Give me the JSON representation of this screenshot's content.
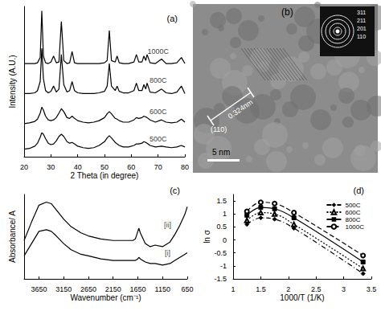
{
  "chart_data": [
    {
      "type": "line",
      "title": "(a)",
      "x_label": "2 Theta (in degree)",
      "y_label": "Intensity (A.U.)",
      "x": [
        20,
        22,
        24,
        25,
        26,
        26.6,
        27.2,
        28,
        29,
        30,
        31,
        32,
        33,
        33.9,
        34.8,
        36,
        37,
        37.9,
        38.8,
        40,
        42,
        44,
        46,
        48,
        50,
        51,
        51.8,
        52.6,
        54,
        54.7,
        55.5,
        57,
        59,
        61,
        61.9,
        62.8,
        64,
        64.7,
        65.4,
        65.9,
        67,
        69,
        71.3,
        73,
        75,
        77,
        78.7,
        80
      ],
      "series": [
        {
          "name": "1000C",
          "color": "#000000",
          "line_style": "solid",
          "values": [
            62,
            62,
            62,
            62.5,
            66,
            97,
            67,
            62.5,
            62,
            63,
            67,
            62.5,
            63,
            90,
            64,
            62,
            62.5,
            70,
            62.5,
            62,
            62,
            62,
            62,
            62,
            62.5,
            64,
            84,
            64,
            63,
            67,
            62.5,
            62,
            62,
            63,
            68,
            63,
            63,
            67,
            64,
            68,
            62.5,
            62,
            65,
            62,
            62,
            62.5,
            66,
            62
          ]
        },
        {
          "name": "800C",
          "color": "#000000",
          "line_style": "solid",
          "values": [
            42,
            42,
            42.5,
            44,
            50,
            72,
            52,
            44,
            42.5,
            43.5,
            47,
            43,
            45,
            68,
            48,
            43,
            44,
            50,
            44,
            42.5,
            42,
            42,
            42,
            42.5,
            43.5,
            47,
            62,
            47,
            44,
            47,
            43.5,
            42.5,
            42.5,
            44,
            49,
            44,
            44,
            48,
            45,
            49,
            43,
            42.5,
            45,
            42.5,
            42,
            43,
            47,
            42
          ]
        },
        {
          "name": "600C",
          "color": "#000000",
          "line_style": "solid",
          "values": [
            22,
            22.5,
            23.5,
            25,
            29,
            33,
            31,
            27,
            24.5,
            24,
            24.5,
            26,
            29,
            32,
            30,
            26,
            25.5,
            27,
            25.5,
            24,
            23,
            22.5,
            23,
            24,
            26,
            28.5,
            30,
            28.5,
            25.5,
            25,
            24,
            23,
            23,
            24.5,
            26,
            25.5,
            26,
            27,
            26.5,
            26,
            24.5,
            23,
            24.5,
            23,
            22.5,
            23,
            25,
            23
          ]
        },
        {
          "name": "500C",
          "color": "#000000",
          "line_style": "solid",
          "values": [
            5,
            5.5,
            7,
            9,
            13,
            16,
            15,
            12,
            9,
            8,
            8.5,
            10.5,
            13.5,
            15,
            13.5,
            10,
            9,
            9.5,
            8.5,
            7,
            6,
            5.5,
            6,
            7.5,
            10,
            12.5,
            14,
            12.5,
            9.5,
            8.5,
            7.5,
            6.5,
            6.5,
            7.5,
            8.5,
            8.5,
            9,
            10,
            9.5,
            9,
            7.5,
            6.5,
            7,
            6.5,
            6,
            6.5,
            7.5,
            6.5
          ]
        }
      ],
      "annotations": [
        {
          "text": "1000C",
          "x": 70,
          "y": 70
        },
        {
          "text": "800C",
          "x": 70,
          "y": 51
        },
        {
          "text": "600C",
          "x": 70,
          "y": 30
        },
        {
          "text": "500C",
          "x": 70,
          "y": 12
        }
      ],
      "xlim": [
        20,
        80
      ],
      "xticks": [
        20,
        30,
        40,
        50,
        60,
        70,
        80
      ],
      "ylim": [
        0,
        100
      ],
      "tick_labels": "x",
      "grid": false
    },
    {
      "type": "line",
      "title": "(c)",
      "x_label": "Wavenumber (cm⁻¹)",
      "y_label": "Absorbance/ A",
      "x": [
        3950,
        3800,
        3650,
        3500,
        3400,
        3300,
        3150,
        3000,
        2800,
        2650,
        2400,
        2150,
        1900,
        1750,
        1700,
        1650,
        1630,
        1600,
        1500,
        1400,
        1300,
        1150,
        1000,
        900,
        800,
        700,
        650
      ],
      "series": [
        {
          "name": "[ii]",
          "color": "#000000",
          "line_style": "solid",
          "values": [
            0.6,
            0.72,
            0.83,
            0.85,
            0.84,
            0.8,
            0.74,
            0.69,
            0.65,
            0.63,
            0.61,
            0.6,
            0.6,
            0.6,
            0.61,
            0.66,
            0.68,
            0.65,
            0.58,
            0.56,
            0.57,
            0.56,
            0.59,
            0.64,
            0.7,
            0.77,
            0.82
          ]
        },
        {
          "name": "[i]",
          "color": "#000000",
          "line_style": "solid",
          "values": [
            0.5,
            0.58,
            0.66,
            0.67,
            0.66,
            0.63,
            0.58,
            0.54,
            0.51,
            0.5,
            0.48,
            0.47,
            0.47,
            0.47,
            0.47,
            0.48,
            0.49,
            0.48,
            0.46,
            0.45,
            0.45,
            0.44,
            0.45,
            0.47,
            0.49,
            0.51,
            0.52
          ]
        }
      ],
      "annotations": [
        {
          "text": "[ii]",
          "x": 1050,
          "y": 0.7
        },
        {
          "text": "[i]",
          "x": 1050,
          "y": 0.52
        }
      ],
      "xlim": [
        650,
        3950
      ],
      "xticks": [
        3650,
        3150,
        2650,
        2150,
        1650,
        1150,
        650
      ],
      "ylim": [
        0.35,
        0.9
      ],
      "tick_labels": "x",
      "grid": false
    },
    {
      "type": "line",
      "title": "(d)",
      "x_label": "1000/T (1/K)",
      "y_label": "ln σ",
      "x": [
        1.25,
        1.5,
        1.75,
        2.1,
        3.35
      ],
      "series": [
        {
          "name": "500C",
          "color": "#000000",
          "marker": "diamond",
          "line_style": "dashdot",
          "values": [
            0.6,
            0.85,
            0.8,
            0.45,
            -1.3
          ]
        },
        {
          "name": "600C",
          "color": "#000000",
          "marker": "triangle-open",
          "line_style": "dotted",
          "values": [
            0.75,
            1.05,
            1.0,
            0.6,
            -1.1
          ]
        },
        {
          "name": "800C",
          "color": "#000000",
          "marker": "square",
          "line_style": "solid",
          "values": [
            0.95,
            1.25,
            1.2,
            0.85,
            -0.85
          ]
        },
        {
          "name": "1000C",
          "color": "#000000",
          "marker": "circle-open",
          "line_style": "dashed",
          "values": [
            1.1,
            1.45,
            1.4,
            1.05,
            -0.6
          ]
        }
      ],
      "xlim": [
        1,
        3.5
      ],
      "xticks": [
        1,
        1.5,
        2,
        2.5,
        3,
        3.5
      ],
      "ylim": [
        -1.5,
        1.75
      ],
      "yticks": [
        -1.5,
        -1,
        -0.5,
        0,
        0.5,
        1,
        1.5
      ],
      "legend": "top-right",
      "grid": false
    }
  ],
  "image": {
    "panel": "(b)",
    "scale_bar": "5 nm",
    "spacing": "0.324nm",
    "plane": "(110)",
    "diffraction_rings": [
      "311",
      "211",
      "201",
      "110"
    ]
  }
}
